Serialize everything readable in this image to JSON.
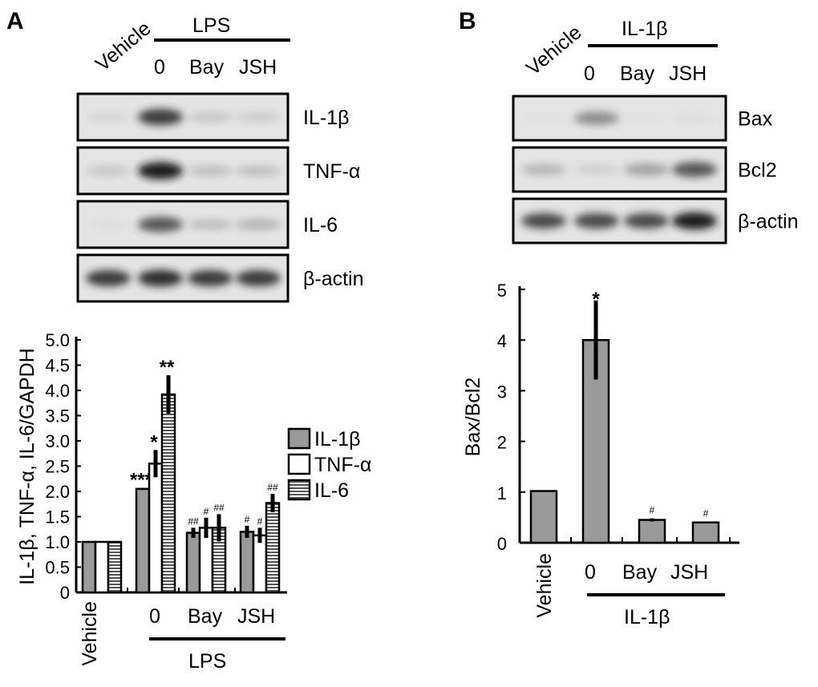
{
  "panels": {
    "A": {
      "letter": "A",
      "blot": {
        "top_labels": {
          "vehicle": "Vehicle",
          "group": "LPS",
          "lanes": [
            "0",
            "Bay",
            "JSH"
          ]
        },
        "rows": [
          {
            "label": "IL-1β",
            "intensity": [
              0.15,
              0.85,
              0.25,
              0.22
            ]
          },
          {
            "label": "TNF-α",
            "intensity": [
              0.25,
              0.95,
              0.3,
              0.3
            ]
          },
          {
            "label": "IL-6",
            "intensity": [
              0.08,
              0.75,
              0.3,
              0.35
            ]
          },
          {
            "label": "β-actin",
            "intensity": [
              0.85,
              0.9,
              0.85,
              0.85
            ]
          }
        ]
      }
    },
    "B": {
      "letter": "B",
      "blot": {
        "top_labels": {
          "vehicle": "Vehicle",
          "group": "IL-1β",
          "lanes": [
            "0",
            "Bay",
            "JSH"
          ]
        },
        "rows": [
          {
            "label": "Bax",
            "intensity": [
              0.05,
              0.55,
              0.05,
              0.08
            ]
          },
          {
            "label": "Bcl2",
            "intensity": [
              0.35,
              0.2,
              0.45,
              0.75
            ]
          },
          {
            "label": "β-actin",
            "intensity": [
              0.8,
              0.8,
              0.8,
              0.95
            ]
          }
        ]
      }
    }
  },
  "chart_data": [
    {
      "type": "bar",
      "panel": "A",
      "ylabel": "IL-1β, TNF-α, IL-6/GAPDH",
      "ylim": [
        0,
        5
      ],
      "yticks": [
        "0",
        "0.5",
        "1.0",
        "1.5",
        "2.0",
        "2.5",
        "3.0",
        "3.5",
        "4.0",
        "4.5",
        "5.0"
      ],
      "categories": [
        "Vehicle",
        "0",
        "Bay",
        "JSH"
      ],
      "group_label": "LPS",
      "legend_position": "right",
      "series": [
        {
          "name": "IL-1β",
          "color": "#9a9a9a",
          "pattern": "solid",
          "values": [
            1.0,
            2.05,
            1.18,
            1.2
          ],
          "errors": [
            0,
            0.02,
            0.1,
            0.12
          ],
          "annotations": [
            "",
            "***",
            "##",
            "#"
          ]
        },
        {
          "name": "TNF-α",
          "color": "#ffffff",
          "pattern": "open",
          "values": [
            1.0,
            2.55,
            1.28,
            1.13
          ],
          "errors": [
            0,
            0.27,
            0.2,
            0.15
          ],
          "annotations": [
            "",
            "*",
            "#",
            "#"
          ]
        },
        {
          "name": "IL-6",
          "color": "#ffffff",
          "pattern": "horizontal-stripes",
          "values": [
            1.0,
            3.92,
            1.28,
            1.77
          ],
          "errors": [
            0,
            0.38,
            0.27,
            0.18
          ],
          "annotations": [
            "",
            "**",
            "##",
            "##"
          ]
        }
      ]
    },
    {
      "type": "bar",
      "panel": "B",
      "ylabel": "Bax/Bcl2",
      "ylim": [
        0,
        5
      ],
      "yticks": [
        "0",
        "1",
        "2",
        "3",
        "4",
        "5"
      ],
      "categories": [
        "Vehicle",
        "0",
        "Bay",
        "JSH"
      ],
      "group_label": "IL-1β",
      "series": [
        {
          "color": "#9a9a9a",
          "values": [
            1.02,
            4.0,
            0.45,
            0.4
          ],
          "errors": [
            0,
            0.78,
            0.03,
            0.02
          ],
          "annotations": [
            "",
            "*",
            "#",
            "#"
          ]
        }
      ]
    }
  ]
}
